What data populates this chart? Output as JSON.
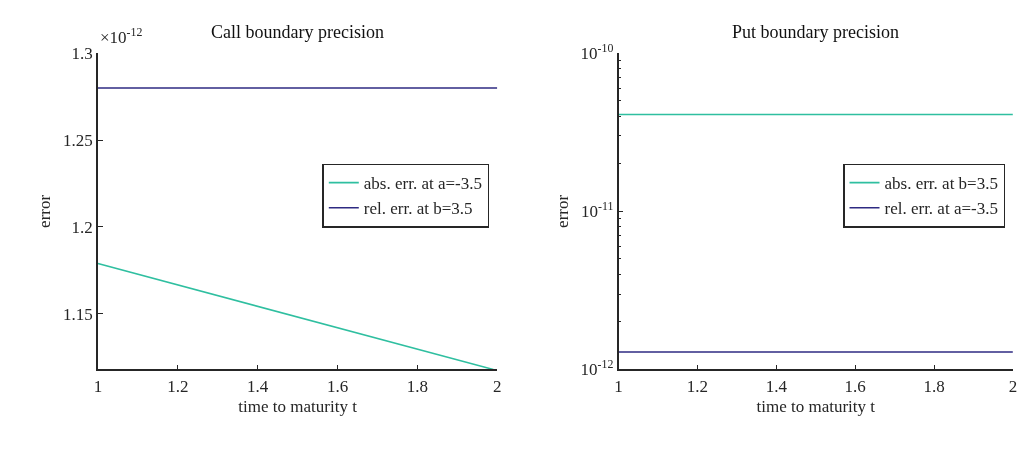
{
  "chart_data": [
    {
      "type": "line",
      "title": "Call boundary precision",
      "xlabel": "time to maturity t",
      "ylabel": "error",
      "annotations": [
        "×10$^{-12}$"
      ],
      "xlim": [
        1,
        2
      ],
      "xticks": [
        1,
        1.2,
        1.4,
        1.6,
        1.8,
        2
      ],
      "ylim": [
        1.118,
        1.3
      ],
      "yticks": [
        1.15,
        1.2,
        1.25,
        1.3
      ],
      "legend": "right",
      "marker": "none",
      "line_style": "solid",
      "series": [
        {
          "name": "abs. err. at a=-3.5",
          "color": "#2fbfa0",
          "x": [
            1,
            1.99
          ],
          "values": [
            1.179,
            1.118
          ]
        },
        {
          "name": "rel. err. at b=3.5",
          "color": "#2e2a82",
          "x": [
            1,
            2
          ],
          "values": [
            1.28,
            1.28
          ]
        }
      ]
    },
    {
      "type": "line",
      "title": "Put boundary precision",
      "xlabel": "time to maturity t",
      "ylabel": "error",
      "log": "y",
      "xlim": [
        1,
        2
      ],
      "xticks": [
        1,
        1.2,
        1.4,
        1.6,
        1.8,
        2
      ],
      "ylim": [
        1e-12,
        1e-10
      ],
      "yticks": [
        {
          "value": 1e-12,
          "label": "10$^{-12}$"
        },
        {
          "value": 2e-12,
          "label": null
        },
        {
          "value": 3e-12,
          "label": null
        },
        {
          "value": 4e-12,
          "label": null
        },
        {
          "value": 5e-12,
          "label": null
        },
        {
          "value": 6e-12,
          "label": null
        },
        {
          "value": 7e-12,
          "label": null
        },
        {
          "value": 8e-12,
          "label": null
        },
        {
          "value": 9e-12,
          "label": null
        },
        {
          "value": 1e-11,
          "label": "10$^{-11}$"
        },
        {
          "value": 2e-11,
          "label": null
        },
        {
          "value": 3e-11,
          "label": null
        },
        {
          "value": 4e-11,
          "label": null
        },
        {
          "value": 5e-11,
          "label": null
        },
        {
          "value": 6e-11,
          "label": null
        },
        {
          "value": 7e-11,
          "label": null
        },
        {
          "value": 8e-11,
          "label": null
        },
        {
          "value": 9e-11,
          "label": null
        },
        {
          "value": 1e-10,
          "label": "10$^{-10}$"
        }
      ],
      "legend": "right",
      "marker": "none",
      "line_style": "solid",
      "series": [
        {
          "name": "abs. err. at b=3.5",
          "color": "#2fbfa0",
          "x": [
            1,
            2
          ],
          "values": [
            4.1e-11,
            4.1e-11
          ]
        },
        {
          "name": "rel. err. at a=-3.5",
          "color": "#2e2a82",
          "x": [
            1,
            2
          ],
          "values": [
            1.29e-12,
            1.29e-12
          ]
        }
      ]
    }
  ]
}
